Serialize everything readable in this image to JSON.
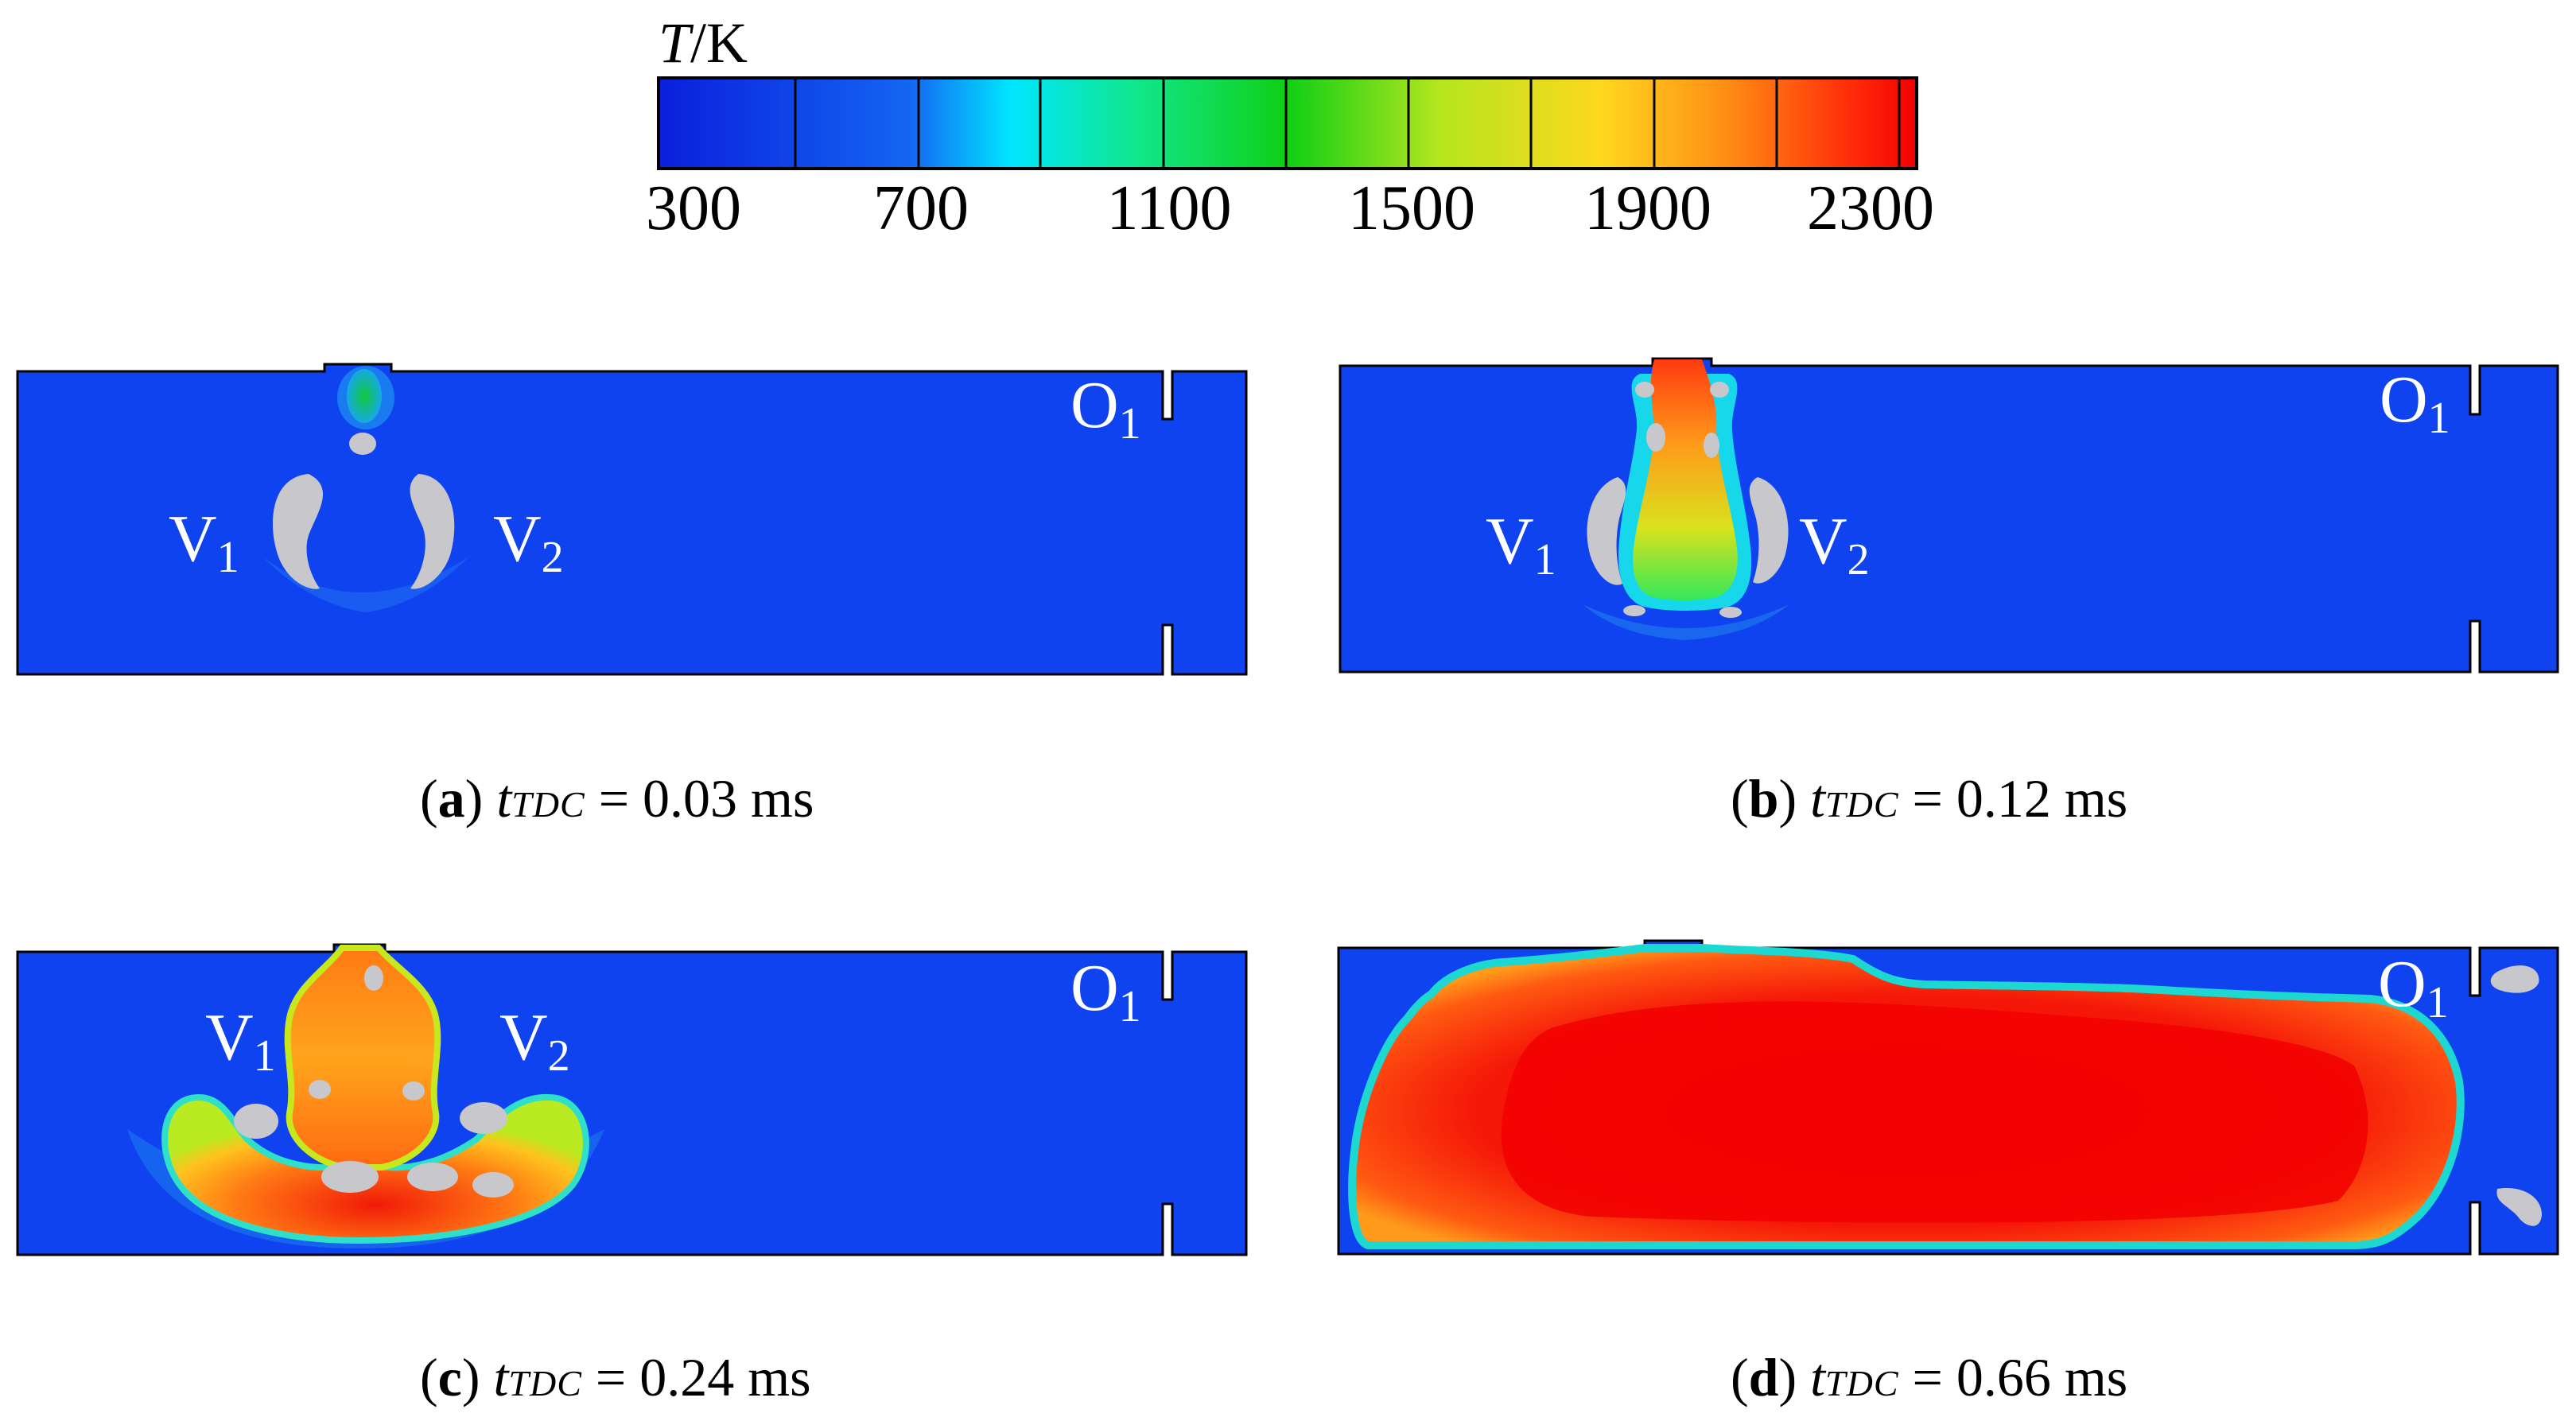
{
  "colorbar": {
    "title_var": "T",
    "title_unit": "/K",
    "tick_labels": [
      "300",
      "700",
      "1100",
      "1500",
      "1900",
      "2300"
    ],
    "stops": [
      "#0a1fdc",
      "#1466f2",
      "#00e6ff",
      "#11e78c",
      "#0fcf15",
      "#b4e61e",
      "#ffd71e",
      "#ff8c14",
      "#ff2a0a",
      "#f20000"
    ]
  },
  "panels": [
    {
      "id": "a",
      "label": "a",
      "t_var": "t",
      "t_sub": "TDC",
      "value_text": "= 0.03 ms",
      "annotations": {
        "v1": "V",
        "v1_sub": "1",
        "v2": "V",
        "v2_sub": "2",
        "o1": "O",
        "o1_sub": "1"
      }
    },
    {
      "id": "b",
      "label": "b",
      "t_var": "t",
      "t_sub": "TDC",
      "value_text": "= 0.12 ms",
      "annotations": {
        "v1": "V",
        "v1_sub": "1",
        "v2": "V",
        "v2_sub": "2",
        "o1": "O",
        "o1_sub": "1"
      }
    },
    {
      "id": "c",
      "label": "c",
      "t_var": "t",
      "t_sub": "TDC",
      "value_text": "= 0.24 ms",
      "annotations": {
        "v1": "V",
        "v1_sub": "1",
        "v2": "V",
        "v2_sub": "2",
        "o1": "O",
        "o1_sub": "1"
      }
    },
    {
      "id": "d",
      "label": "d",
      "t_var": "t",
      "t_sub": "TDC",
      "value_text": "= 0.66 ms",
      "annotations": {
        "o1": "O",
        "o1_sub": "1"
      }
    }
  ]
}
